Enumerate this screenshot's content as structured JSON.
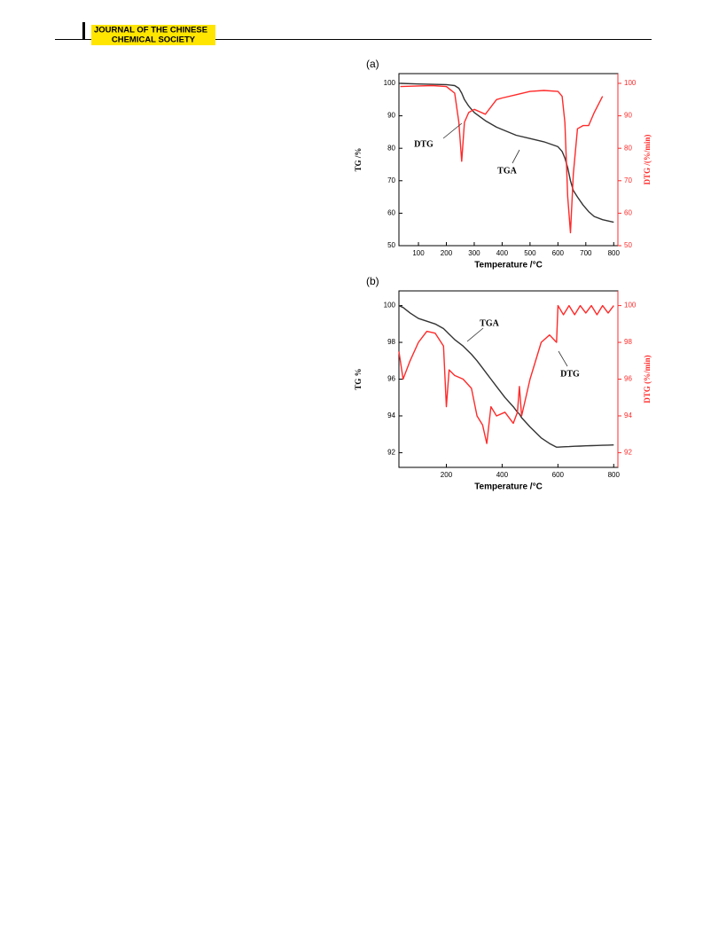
{
  "header": {
    "journal_line1": "JOURNAL OF THE CHINESE",
    "journal_line2": "CHEMICAL SOCIETY"
  },
  "chart_data": [
    {
      "type": "line",
      "panel_label": "(a)",
      "x_label": "Temperature /°C",
      "y_label": "TG /%",
      "y2_label": "DTG /(%/min)",
      "x": [
        35,
        100,
        150,
        200,
        230,
        245,
        255,
        265,
        280,
        300,
        340,
        380,
        400,
        450,
        500,
        550,
        600,
        615,
        625,
        635,
        645,
        655,
        670,
        690,
        710,
        730,
        760,
        800
      ],
      "xlim": [
        30,
        815
      ],
      "xticks": [
        100,
        200,
        300,
        400,
        500,
        600,
        700,
        800
      ],
      "ylim": [
        50,
        103
      ],
      "yticks": [
        50,
        60,
        70,
        80,
        90,
        100
      ],
      "y2lim": [
        50,
        103
      ],
      "y2ticks": [
        50,
        60,
        70,
        80,
        90,
        100
      ],
      "series": [
        {
          "name": "TGA",
          "color": "#333333",
          "values": [
            100,
            99.8,
            99.7,
            99.6,
            99.3,
            98.5,
            97,
            95,
            93,
            91,
            88.5,
            86.5,
            85.8,
            84,
            83,
            82,
            80.5,
            79,
            77,
            74,
            70,
            67,
            65,
            62.5,
            60.5,
            59,
            58,
            57.2
          ]
        },
        {
          "name": "DTG",
          "color": "#ff2a2a",
          "axis": "y2",
          "values": [
            99,
            99.2,
            99.3,
            99,
            97,
            88,
            76,
            88,
            91,
            92,
            90.5,
            95,
            95.5,
            96.5,
            97.5,
            97.8,
            97.5,
            96,
            88,
            65,
            54,
            72,
            86,
            87,
            87,
            91,
            96,
            null
          ]
        }
      ]
    },
    {
      "type": "line",
      "panel_label": "(b)",
      "x_label": "Temperature /°C",
      "y_label": "TG %",
      "y2_label": "DTG (%/min)",
      "x": [
        30,
        45,
        70,
        100,
        130,
        160,
        190,
        200,
        210,
        230,
        260,
        290,
        310,
        330,
        345,
        360,
        380,
        410,
        440,
        455,
        462,
        470,
        500,
        540,
        570,
        595,
        600,
        620,
        640,
        660,
        680,
        700,
        720,
        740,
        760,
        780,
        800
      ],
      "xlim": [
        30,
        815
      ],
      "xticks": [
        200,
        400,
        600,
        800
      ],
      "ylim": [
        91.2,
        100.8
      ],
      "yticks": [
        92,
        94,
        96,
        98,
        100
      ],
      "y2lim": [
        91.2,
        100.8
      ],
      "y2ticks": [
        92,
        94,
        96,
        98,
        100
      ],
      "series": [
        {
          "name": "TGA",
          "color": "#333333",
          "values": [
            100,
            99.9,
            99.6,
            99.3,
            99.15,
            99,
            98.75,
            98.6,
            98.45,
            98.15,
            97.8,
            97.35,
            97,
            96.6,
            96.3,
            96,
            95.6,
            95,
            94.5,
            94.2,
            94.1,
            93.9,
            93.4,
            92.8,
            92.5,
            92.3,
            92.3,
            92.32,
            92.33,
            92.35,
            92.36,
            92.37,
            92.38,
            92.39,
            92.4,
            92.41,
            92.42
          ]
        },
        {
          "name": "DTG",
          "color": "#ff2a2a",
          "axis": "y2",
          "values": [
            97.5,
            96,
            97,
            98,
            98.6,
            98.5,
            97.8,
            94.5,
            96.5,
            96.2,
            96,
            95.5,
            94,
            93.5,
            92.5,
            94.5,
            94,
            94.2,
            93.6,
            94.2,
            95.6,
            94,
            96,
            98,
            98.4,
            98,
            100,
            99.5,
            100,
            99.5,
            100,
            99.6,
            100,
            99.5,
            100,
            99.6,
            100
          ]
        }
      ]
    }
  ]
}
